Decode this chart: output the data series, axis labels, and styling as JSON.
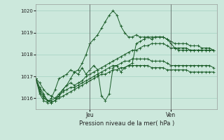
{
  "bg_color": "#cce8dc",
  "grid_color": "#99ccbb",
  "line_color": "#1a5c28",
  "xlabel": "Pression niveau de la mer( hPa )",
  "ylim": [
    1015.5,
    1020.3
  ],
  "xlim": [
    0,
    47
  ],
  "yticks": [
    1016,
    1017,
    1018,
    1019,
    1020
  ],
  "jeu_x": 14,
  "ven_x": 35,
  "series": [
    [
      1016.9,
      1016.7,
      1016.4,
      1016.2,
      1016.1,
      1016.0,
      1016.1,
      1016.4,
      1016.6,
      1016.7,
      1016.6,
      1016.7,
      1016.8,
      1017.0,
      1017.1,
      1017.2,
      1017.3,
      1017.4,
      1017.5,
      1017.6,
      1017.7,
      1017.8,
      1017.9,
      1018.0,
      1018.1,
      1018.2,
      1018.2,
      1018.3,
      1018.4,
      1018.4,
      1018.5,
      1018.5,
      1018.5,
      1018.5,
      1018.4,
      1018.3,
      1018.3,
      1018.3,
      1018.3,
      1018.3,
      1018.2,
      1018.2,
      1018.2,
      1018.2,
      1018.2,
      1018.2,
      1018.2
    ],
    [
      1016.9,
      1016.5,
      1016.2,
      1015.9,
      1015.8,
      1015.9,
      1016.1,
      1016.3,
      1016.4,
      1016.5,
      1016.5,
      1016.6,
      1016.7,
      1016.8,
      1016.9,
      1017.0,
      1017.1,
      1017.2,
      1017.3,
      1017.4,
      1017.5,
      1017.5,
      1017.6,
      1017.7,
      1017.7,
      1017.8,
      1017.8,
      1017.8,
      1017.8,
      1017.8,
      1017.7,
      1017.7,
      1017.7,
      1017.7,
      1017.6,
      1017.5,
      1017.5,
      1017.5,
      1017.5,
      1017.5,
      1017.5,
      1017.5,
      1017.5,
      1017.5,
      1017.5,
      1017.5,
      1017.4
    ],
    [
      1016.9,
      1016.4,
      1016.1,
      1015.9,
      1015.8,
      1015.9,
      1016.0,
      1016.1,
      1016.2,
      1016.3,
      1016.4,
      1016.5,
      1016.6,
      1016.7,
      1016.8,
      1016.9,
      1017.0,
      1017.1,
      1017.1,
      1017.2,
      1017.3,
      1017.3,
      1017.4,
      1017.4,
      1017.5,
      1017.5,
      1017.5,
      1017.5,
      1017.5,
      1017.5,
      1017.4,
      1017.4,
      1017.4,
      1017.4,
      1017.3,
      1017.3,
      1017.3,
      1017.3,
      1017.3,
      1017.3,
      1017.2,
      1017.2,
      1017.2,
      1017.2,
      1017.2,
      1017.2,
      1017.2
    ],
    [
      1016.9,
      1016.3,
      1016.0,
      1015.9,
      1015.9,
      1016.0,
      1016.2,
      1016.4,
      1016.6,
      1016.9,
      1017.2,
      1017.1,
      1017.4,
      1017.1,
      1017.3,
      1017.5,
      1017.3,
      1016.1,
      1015.9,
      1016.2,
      1017.4,
      1017.5,
      1017.2,
      1017.4,
      1017.5,
      1017.6,
      1018.5,
      1018.6,
      1018.7,
      1018.8,
      1018.8,
      1018.8,
      1018.8,
      1018.8,
      1018.7,
      1018.6,
      1018.5,
      1018.5,
      1018.5,
      1018.5,
      1018.4,
      1018.4,
      1018.4,
      1018.3,
      1018.3,
      1018.3,
      1018.2
    ],
    [
      1016.9,
      1016.2,
      1015.9,
      1015.8,
      1016.0,
      1016.4,
      1016.9,
      1017.0,
      1017.1,
      1017.3,
      1017.2,
      1017.3,
      1017.6,
      1018.0,
      1018.5,
      1018.7,
      1018.9,
      1019.2,
      1019.5,
      1019.8,
      1020.0,
      1019.8,
      1019.3,
      1019.0,
      1018.8,
      1018.8,
      1018.9,
      1018.8,
      1018.8,
      1018.8,
      1018.7,
      1018.8,
      1018.8,
      1018.8,
      1018.7,
      1018.5,
      1018.3,
      1018.2,
      1018.2,
      1018.2,
      1018.2,
      1018.2,
      1018.2,
      1018.2,
      1018.2,
      1018.2,
      1018.2
    ]
  ],
  "figsize": [
    3.2,
    2.0
  ],
  "dpi": 100
}
